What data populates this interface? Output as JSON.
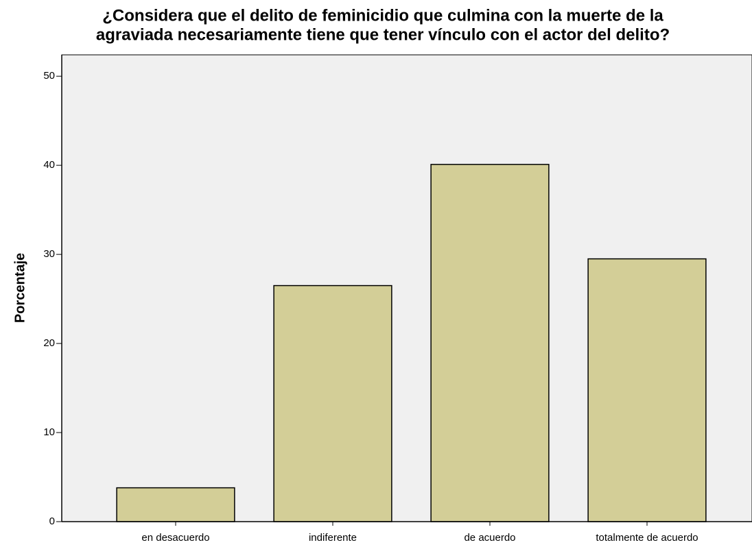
{
  "chart_data": {
    "type": "bar",
    "title": [
      "¿Considera que el delito de feminicidio que culmina con la muerte de la",
      "agraviada necesariamente tiene que tener vínculo con el actor del delito?"
    ],
    "y_label": "Porcentaje",
    "categories": [
      "en desacuerdo",
      "indiferente",
      "de acuerdo",
      "totalmente de acuerdo"
    ],
    "values": [
      3.8,
      26.5,
      40.1,
      29.5
    ],
    "color": "#d3ce97",
    "ylim": [
      0,
      52.4
    ],
    "yticks": [
      0,
      10,
      20,
      30,
      40,
      50
    ],
    "grid": false
  }
}
